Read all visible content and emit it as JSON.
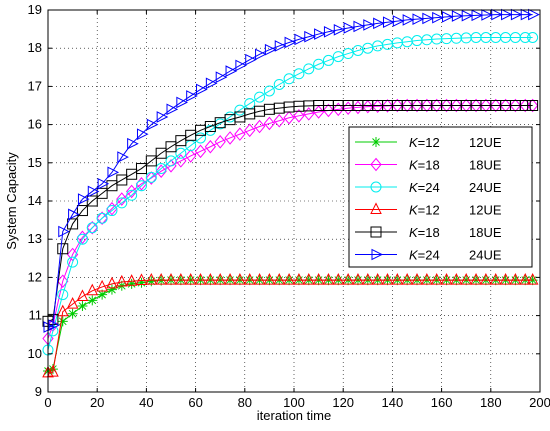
{
  "chart_data": {
    "type": "line",
    "xlabel": "iteration time",
    "ylabel": "System Capacity",
    "xlim": [
      0,
      200
    ],
    "ylim": [
      9,
      19
    ],
    "xticks": [
      0,
      20,
      40,
      60,
      80,
      100,
      120,
      140,
      160,
      180,
      200
    ],
    "yticks": [
      9,
      10,
      11,
      12,
      13,
      14,
      15,
      16,
      17,
      18,
      19
    ],
    "grid": true,
    "legend_position": "right",
    "series": [
      {
        "name": "K=12  12UE",
        "name_italic": "K",
        "name_rest": "=12",
        "name_ue": "12UE",
        "color": "#00cc00",
        "marker": "star",
        "x": [
          0,
          2,
          6,
          10,
          14,
          18,
          22,
          26,
          30,
          34,
          38,
          42,
          46,
          50,
          54,
          58,
          62,
          66,
          70,
          74,
          78,
          82,
          86,
          90,
          94,
          98,
          102,
          106,
          110,
          114,
          118,
          122,
          126,
          130,
          134,
          138,
          142,
          146,
          150,
          154,
          158,
          162,
          166,
          170,
          174,
          178,
          182,
          186,
          190,
          194,
          197
        ],
        "y": [
          9.55,
          9.6,
          10.85,
          11.05,
          11.25,
          11.4,
          11.55,
          11.68,
          11.78,
          11.83,
          11.86,
          11.9,
          11.92,
          11.93,
          11.93,
          11.93,
          11.93,
          11.93,
          11.93,
          11.93,
          11.93,
          11.93,
          11.93,
          11.93,
          11.93,
          11.93,
          11.93,
          11.93,
          11.93,
          11.93,
          11.93,
          11.93,
          11.93,
          11.93,
          11.93,
          11.93,
          11.93,
          11.93,
          11.93,
          11.93,
          11.93,
          11.93,
          11.93,
          11.93,
          11.93,
          11.93,
          11.93,
          11.93,
          11.93,
          11.93,
          11.93
        ]
      },
      {
        "name": "K=18  18UE",
        "name_italic": "K",
        "name_rest": "=18",
        "name_ue": "18UE",
        "color": "#ff00ff",
        "marker": "diamond",
        "x": [
          0,
          2,
          6,
          10,
          14,
          18,
          22,
          26,
          30,
          34,
          38,
          42,
          46,
          50,
          54,
          58,
          62,
          66,
          70,
          74,
          78,
          82,
          86,
          90,
          94,
          98,
          102,
          106,
          110,
          114,
          118,
          122,
          126,
          130,
          134,
          138,
          142,
          146,
          150,
          154,
          158,
          162,
          166,
          170,
          174,
          178,
          182,
          186,
          190,
          194,
          197
        ],
        "y": [
          10.4,
          10.75,
          11.9,
          12.6,
          13.05,
          13.3,
          13.55,
          13.8,
          14.05,
          14.25,
          14.45,
          14.6,
          14.78,
          14.92,
          15.05,
          15.18,
          15.3,
          15.42,
          15.55,
          15.65,
          15.75,
          15.85,
          15.95,
          16.03,
          16.1,
          16.18,
          16.23,
          16.28,
          16.33,
          16.37,
          16.4,
          16.43,
          16.45,
          16.47,
          16.48,
          16.49,
          16.5,
          16.5,
          16.5,
          16.5,
          16.5,
          16.5,
          16.5,
          16.5,
          16.5,
          16.5,
          16.5,
          16.5,
          16.5,
          16.5,
          16.5
        ]
      },
      {
        "name": "K=24  24UE",
        "name_italic": "K",
        "name_rest": "=24",
        "name_ue": "24UE",
        "color": "#00eeee",
        "marker": "circle",
        "x": [
          0,
          2,
          6,
          10,
          14,
          18,
          22,
          26,
          30,
          34,
          38,
          42,
          46,
          50,
          54,
          58,
          62,
          66,
          70,
          74,
          78,
          82,
          86,
          90,
          94,
          98,
          102,
          106,
          110,
          114,
          118,
          122,
          126,
          130,
          134,
          138,
          142,
          146,
          150,
          154,
          158,
          162,
          166,
          170,
          174,
          178,
          182,
          186,
          190,
          194,
          197
        ],
        "y": [
          10.1,
          10.6,
          11.55,
          12.4,
          13.0,
          13.3,
          13.55,
          13.75,
          13.95,
          14.15,
          14.4,
          14.62,
          14.85,
          15.05,
          15.25,
          15.45,
          15.65,
          15.85,
          16.02,
          16.2,
          16.38,
          16.55,
          16.72,
          16.88,
          17.05,
          17.2,
          17.33,
          17.46,
          17.58,
          17.68,
          17.78,
          17.86,
          17.94,
          18.0,
          18.06,
          18.1,
          18.14,
          18.17,
          18.2,
          18.22,
          18.24,
          18.25,
          18.26,
          18.27,
          18.28,
          18.28,
          18.28,
          18.28,
          18.28,
          18.28,
          18.28
        ]
      },
      {
        "name": "K=12  12UE",
        "name_italic": "K",
        "name_rest": "=12",
        "name_ue": "12UE",
        "color": "#ff0000",
        "marker": "triangle-up",
        "x": [
          0,
          2,
          6,
          10,
          14,
          18,
          22,
          26,
          30,
          34,
          38,
          42,
          46,
          50,
          54,
          58,
          62,
          66,
          70,
          74,
          78,
          82,
          86,
          90,
          94,
          98,
          102,
          106,
          110,
          114,
          118,
          122,
          126,
          130,
          134,
          138,
          142,
          146,
          150,
          154,
          158,
          162,
          166,
          170,
          174,
          178,
          182,
          186,
          190,
          194,
          197
        ],
        "y": [
          9.5,
          9.52,
          11.1,
          11.3,
          11.5,
          11.65,
          11.75,
          11.83,
          11.88,
          11.9,
          11.92,
          11.93,
          11.93,
          11.93,
          11.93,
          11.93,
          11.93,
          11.93,
          11.93,
          11.93,
          11.93,
          11.93,
          11.93,
          11.93,
          11.93,
          11.93,
          11.93,
          11.93,
          11.93,
          11.93,
          11.93,
          11.93,
          11.93,
          11.93,
          11.93,
          11.93,
          11.93,
          11.93,
          11.93,
          11.93,
          11.93,
          11.93,
          11.93,
          11.93,
          11.93,
          11.93,
          11.93,
          11.93,
          11.93,
          11.93,
          11.93
        ]
      },
      {
        "name": "K=18  18UE",
        "name_italic": "K",
        "name_rest": "=18",
        "name_ue": "18UE",
        "color": "#000000",
        "marker": "square",
        "x": [
          0,
          2,
          6,
          10,
          14,
          18,
          22,
          26,
          30,
          34,
          38,
          42,
          46,
          50,
          54,
          58,
          62,
          66,
          70,
          74,
          78,
          82,
          86,
          90,
          94,
          98,
          102,
          106,
          110,
          114,
          118,
          122,
          126,
          130,
          134,
          138,
          142,
          146,
          150,
          154,
          158,
          162,
          166,
          170,
          174,
          178,
          182,
          186,
          190,
          194,
          197
        ],
        "y": [
          10.85,
          10.9,
          12.75,
          13.4,
          13.75,
          14.0,
          14.2,
          14.4,
          14.55,
          14.7,
          14.85,
          15.05,
          15.25,
          15.42,
          15.58,
          15.72,
          15.85,
          15.95,
          16.05,
          16.13,
          16.2,
          16.28,
          16.35,
          16.4,
          16.43,
          16.46,
          16.48,
          16.49,
          16.5,
          16.5,
          16.5,
          16.5,
          16.5,
          16.5,
          16.5,
          16.5,
          16.5,
          16.5,
          16.5,
          16.5,
          16.5,
          16.5,
          16.5,
          16.5,
          16.5,
          16.5,
          16.5,
          16.5,
          16.5,
          16.5,
          16.5
        ]
      },
      {
        "name": "K=24  24UE",
        "name_italic": "K",
        "name_rest": "=24",
        "name_ue": "24UE",
        "color": "#0000ff",
        "marker": "triangle-right",
        "x": [
          0,
          2,
          6,
          10,
          14,
          18,
          22,
          26,
          30,
          34,
          38,
          42,
          46,
          50,
          54,
          58,
          62,
          66,
          70,
          74,
          78,
          82,
          86,
          90,
          94,
          98,
          102,
          106,
          110,
          114,
          118,
          122,
          126,
          130,
          134,
          138,
          142,
          146,
          150,
          154,
          158,
          162,
          166,
          170,
          174,
          178,
          182,
          186,
          190,
          194,
          197
        ],
        "y": [
          10.7,
          10.75,
          13.2,
          13.65,
          14.05,
          14.25,
          14.45,
          14.75,
          15.15,
          15.5,
          15.75,
          16.0,
          16.2,
          16.4,
          16.58,
          16.75,
          16.92,
          17.08,
          17.24,
          17.4,
          17.55,
          17.7,
          17.84,
          17.96,
          18.06,
          18.15,
          18.23,
          18.3,
          18.37,
          18.43,
          18.48,
          18.53,
          18.57,
          18.61,
          18.65,
          18.68,
          18.71,
          18.74,
          18.76,
          18.78,
          18.8,
          18.82,
          18.84,
          18.85,
          18.86,
          18.87,
          18.88,
          18.88,
          18.88,
          18.88,
          18.88
        ]
      }
    ]
  }
}
